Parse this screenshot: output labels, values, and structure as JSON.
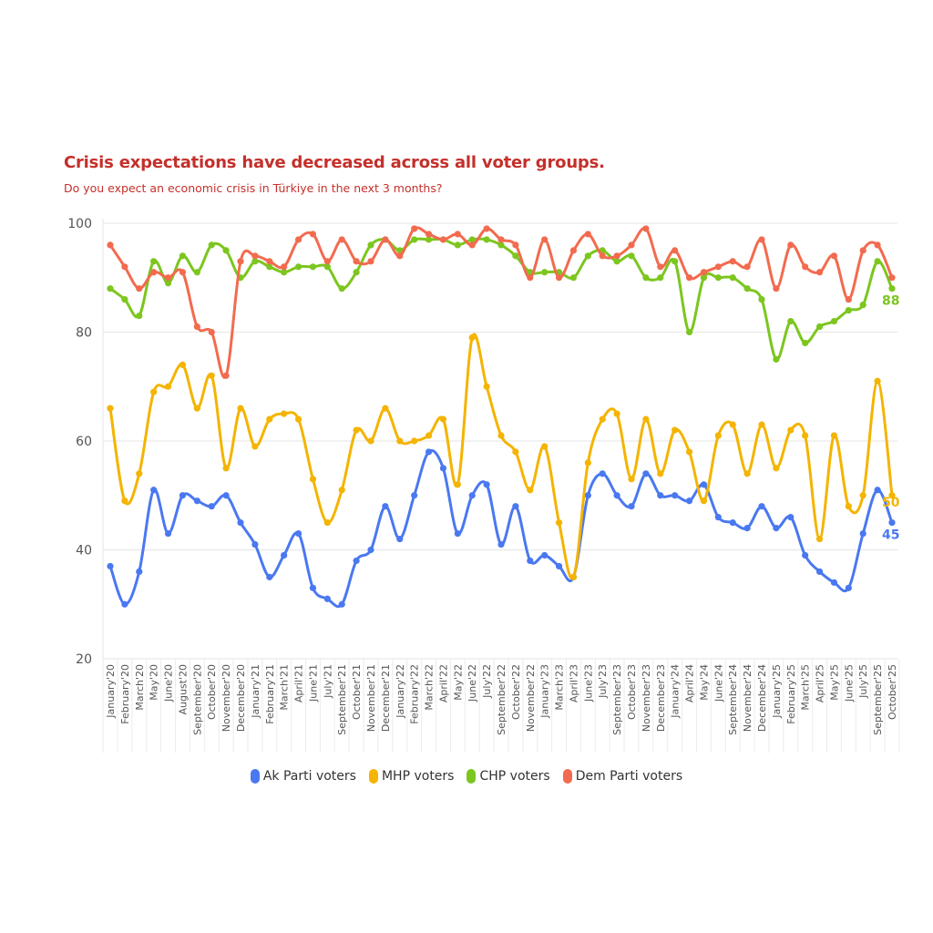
{
  "chart_data": {
    "type": "line",
    "title": "Crisis expectations have decreased across all voter groups.",
    "subtitle": "Do you expect an economic crisis in Türkiye in the next 3 months?",
    "xlabel": "",
    "ylabel": "",
    "ylim": [
      20,
      100
    ],
    "yticks": [
      20,
      40,
      60,
      80,
      100
    ],
    "grid": true,
    "legend_position": "bottom",
    "categories": [
      "January'20",
      "February'20",
      "March'20",
      "May'20",
      "June'20",
      "August'20",
      "September'20",
      "October'20",
      "November'20",
      "December'20",
      "January'21",
      "February'21",
      "March'21",
      "April'21",
      "June'21",
      "July'21",
      "September'21",
      "October'21",
      "November'21",
      "December'21",
      "January'22",
      "February'22",
      "March'22",
      "April'22",
      "May'22",
      "June'22",
      "July'22",
      "September'22",
      "October'22",
      "November'22",
      "January'23",
      "March'23",
      "April'23",
      "June'23",
      "July'23",
      "September'23",
      "October'23",
      "November'23",
      "December'23",
      "January'24",
      "April'24",
      "May'24",
      "June'24",
      "September'24",
      "November'24",
      "December'24",
      "January'25",
      "February'25",
      "March'25",
      "April'25",
      "May'25",
      "June'25",
      "July'25",
      "September'25",
      "October'25"
    ],
    "series": [
      {
        "name": "Ak Parti voters",
        "color": "#4a78f0",
        "end_label": "45",
        "values": [
          37,
          30,
          36,
          51,
          43,
          50,
          49,
          48,
          50,
          45,
          41,
          35,
          39,
          43,
          33,
          31,
          30,
          38,
          40,
          48,
          42,
          50,
          58,
          55,
          43,
          50,
          52,
          41,
          48,
          38,
          39,
          37,
          35,
          50,
          54,
          50,
          48,
          54,
          50,
          50,
          49,
          52,
          46,
          45,
          44,
          48,
          44,
          46,
          39,
          36,
          34,
          33,
          43,
          51,
          45
        ]
      },
      {
        "name": "MHP voters",
        "color": "#f4b400",
        "end_label": "50",
        "values": [
          66,
          49,
          54,
          69,
          70,
          74,
          66,
          72,
          55,
          66,
          59,
          64,
          65,
          64,
          53,
          45,
          51,
          62,
          60,
          66,
          60,
          60,
          61,
          64,
          52,
          79,
          70,
          61,
          58,
          51,
          59,
          45,
          35,
          56,
          64,
          65,
          53,
          64,
          54,
          62,
          58,
          49,
          61,
          63,
          54,
          63,
          55,
          62,
          61,
          42,
          61,
          48,
          50,
          71,
          50
        ]
      },
      {
        "name": "CHP voters",
        "color": "#7cc61f",
        "end_label": "88",
        "values": [
          88,
          86,
          83,
          93,
          89,
          94,
          91,
          96,
          95,
          90,
          93,
          92,
          91,
          92,
          92,
          92,
          88,
          91,
          96,
          97,
          95,
          97,
          97,
          97,
          96,
          97,
          97,
          96,
          94,
          91,
          91,
          91,
          90,
          94,
          95,
          93,
          94,
          90,
          90,
          93,
          80,
          90,
          90,
          90,
          88,
          86,
          75,
          82,
          78,
          81,
          82,
          84,
          85,
          93,
          88
        ]
      },
      {
        "name": "Dem Parti voters",
        "color": "#f26b4f",
        "end_label": "",
        "values": [
          96,
          92,
          88,
          91,
          90,
          91,
          81,
          80,
          72,
          93,
          94,
          93,
          92,
          97,
          98,
          93,
          97,
          93,
          93,
          97,
          94,
          99,
          98,
          97,
          98,
          96,
          99,
          97,
          96,
          90,
          97,
          90,
          95,
          98,
          94,
          94,
          96,
          99,
          92,
          95,
          90,
          91,
          92,
          93,
          92,
          97,
          88,
          96,
          92,
          91,
          94,
          86,
          95,
          96,
          90
        ]
      }
    ]
  }
}
